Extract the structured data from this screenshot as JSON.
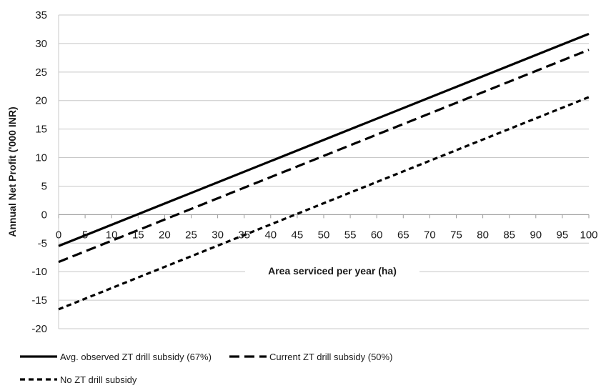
{
  "chart_data": {
    "type": "line",
    "title": "",
    "xlabel": "Area serviced per year (ha)",
    "ylabel": "Annual Net Profit ('000 INR)",
    "xlim": [
      0,
      100
    ],
    "ylim": [
      -20,
      35
    ],
    "x_ticks": [
      "0",
      "5",
      "10",
      "15",
      "20",
      "25",
      "30",
      "35",
      "40",
      "45",
      "50",
      "55",
      "60",
      "65",
      "70",
      "75",
      "80",
      "85",
      "90",
      "95",
      "100"
    ],
    "y_ticks": [
      "-20",
      "-15",
      "-10",
      "-5",
      "0",
      "5",
      "10",
      "15",
      "20",
      "25",
      "30",
      "35"
    ],
    "grid": "horizontal",
    "legend_position": "bottom",
    "series": [
      {
        "name": "Avg. observed ZT drill subsidy (67%)",
        "style": "solid",
        "color": "#000000",
        "x": [
          0,
          100
        ],
        "y": [
          -5.5,
          31.7
        ]
      },
      {
        "name": "Current ZT drill subsidy (50%)",
        "style": "dashed",
        "color": "#000000",
        "x": [
          0,
          100
        ],
        "y": [
          -8.3,
          28.9
        ]
      },
      {
        "name": "No ZT drill subsidy",
        "style": "dotted",
        "color": "#000000",
        "x": [
          0,
          100
        ],
        "y": [
          -16.6,
          20.6
        ]
      }
    ]
  }
}
